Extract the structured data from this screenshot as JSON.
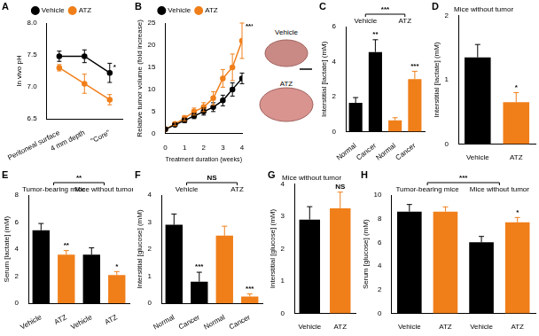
{
  "chart_data": [
    {
      "panel": "A",
      "type": "line",
      "y_label": "In vivo pH",
      "categories": [
        "Peritoneal surface",
        "4 mm depth",
        "\"Core\""
      ],
      "series": [
        {
          "name": "Vehicle",
          "color": "#000000",
          "marker": "circle",
          "values": [
            7.48,
            7.48,
            7.22
          ],
          "errors": [
            0.08,
            0.1,
            0.15
          ]
        },
        {
          "name": "ATZ",
          "color": "#f07f1a",
          "marker": "circle",
          "values": [
            7.3,
            7.05,
            6.8
          ],
          "errors": [
            0.05,
            0.15,
            0.08
          ]
        }
      ],
      "ylim": [
        6.5,
        8.0
      ],
      "yticks": [
        {
          "value": 6.5,
          "label": "6.5"
        },
        {
          "value": 7.0,
          "label": "7.0"
        },
        {
          "value": 7.5,
          "label": "7.5"
        },
        {
          "value": 8.0,
          "label": "8.0"
        }
      ],
      "significance": [
        null,
        null,
        "*"
      ],
      "legend": "top",
      "grid": false
    },
    {
      "panel": "B",
      "type": "line",
      "y_label": "Relative tumor volume (fold increase)",
      "x_label": "Treatment duration (weeks)",
      "x": [
        0,
        0.5,
        1,
        1.5,
        2,
        2.5,
        3,
        3.5,
        4
      ],
      "series": [
        {
          "name": "Vehicle",
          "color": "#000000",
          "marker": "circle",
          "values": [
            1,
            2,
            3,
            4,
            5,
            6,
            7.5,
            10,
            12.5
          ],
          "errors": [
            0,
            0.3,
            0.5,
            0.6,
            0.8,
            1,
            1.2,
            1.5,
            1.2
          ]
        },
        {
          "name": "ATZ",
          "color": "#f07f1a",
          "marker": "circle",
          "values": [
            1,
            2.2,
            3.5,
            5,
            6,
            8,
            12.5,
            15,
            21
          ],
          "errors": [
            0,
            0.4,
            0.6,
            0.8,
            1,
            1.5,
            2,
            3,
            4
          ]
        }
      ],
      "xlim": [
        0,
        4
      ],
      "xticks": [
        0,
        1,
        2,
        3,
        4
      ],
      "ylim": [
        0,
        25
      ],
      "yticks": [
        0,
        5,
        10,
        15,
        20,
        25
      ],
      "significance": [
        null,
        null,
        null,
        null,
        null,
        null,
        null,
        null,
        "***"
      ],
      "photo_labels": [
        "Vehicle",
        "ATZ"
      ],
      "legend": "top",
      "grid": false
    },
    {
      "panel": "C",
      "type": "bar",
      "y_label": "Interstitial [lactate] (mM)",
      "categories": [
        "Normal",
        "Cancer",
        "Normal",
        "Cancer"
      ],
      "values": [
        1.65,
        4.55,
        0.65,
        3.0
      ],
      "errors": [
        0.3,
        0.7,
        0.15,
        0.45
      ],
      "colors": [
        "#000000",
        "#000000",
        "#f07f1a",
        "#f07f1a"
      ],
      "ylim": [
        0,
        6
      ],
      "yticks": [
        0,
        2,
        4,
        6
      ],
      "significance": [
        null,
        "**",
        null,
        "***"
      ],
      "groups": [
        "Vehicle",
        "ATZ"
      ],
      "comparison": "***",
      "grid": false
    },
    {
      "panel": "D",
      "type": "bar",
      "title": "Mice without tumor",
      "y_label": "Interstitial [lactate] (mM)",
      "categories": [
        "Vehicle",
        "ATZ"
      ],
      "values": [
        1.35,
        0.65
      ],
      "errors": [
        0.2,
        0.15
      ],
      "colors": [
        "#000000",
        "#f07f1a"
      ],
      "ylim": [
        0,
        2
      ],
      "yticks": [
        0,
        1,
        2
      ],
      "significance": [
        null,
        "*"
      ],
      "grid": false
    },
    {
      "panel": "E",
      "type": "bar",
      "y_label": "Serum [lactate] (mM)",
      "categories": [
        "Vehicle",
        "ATZ",
        "Vehicle",
        "ATZ"
      ],
      "values": [
        5.4,
        3.6,
        3.6,
        2.1
      ],
      "errors": [
        0.5,
        0.3,
        0.5,
        0.25
      ],
      "colors": [
        "#000000",
        "#f07f1a",
        "#000000",
        "#f07f1a"
      ],
      "ylim": [
        0,
        8
      ],
      "yticks": [
        0,
        2,
        4,
        6,
        8
      ],
      "significance": [
        null,
        "**",
        null,
        "*"
      ],
      "groups": [
        "Tumor-bearing mice",
        "Mice without tumor"
      ],
      "comparison": "**",
      "grid": false
    },
    {
      "panel": "F",
      "type": "bar",
      "y_label": "Interstitial [glucose] (mM)",
      "categories": [
        "Normal",
        "Cancer",
        "Normal",
        "Cancer"
      ],
      "values": [
        2.9,
        0.8,
        2.5,
        0.25
      ],
      "errors": [
        0.4,
        0.35,
        0.35,
        0.1
      ],
      "colors": [
        "#000000",
        "#000000",
        "#f07f1a",
        "#f07f1a"
      ],
      "ylim": [
        0,
        4
      ],
      "yticks": [
        0,
        1,
        2,
        3,
        4
      ],
      "significance": [
        null,
        "***",
        null,
        "***"
      ],
      "groups": [
        "Vehicle",
        "ATZ"
      ],
      "comparison": "NS",
      "grid": false
    },
    {
      "panel": "G",
      "type": "bar",
      "title": "Mice without tumor",
      "y_label": "Interstitial [glucose] (mM)",
      "categories": [
        "Vehicle",
        "ATZ"
      ],
      "values": [
        2.9,
        3.25
      ],
      "errors": [
        0.4,
        0.5
      ],
      "colors": [
        "#000000",
        "#f07f1a"
      ],
      "ylim": [
        0,
        4
      ],
      "yticks": [
        0,
        1,
        2,
        3,
        4
      ],
      "significance": [
        null,
        "NS"
      ],
      "grid": false
    },
    {
      "panel": "H",
      "type": "bar",
      "y_label": "Serum [glucose] (mM)",
      "categories": [
        "Vehicle",
        "ATZ",
        "Vehicle",
        "ATZ"
      ],
      "values": [
        8.6,
        8.6,
        6.0,
        7.7
      ],
      "errors": [
        0.6,
        0.4,
        0.5,
        0.4
      ],
      "colors": [
        "#000000",
        "#f07f1a",
        "#000000",
        "#f07f1a"
      ],
      "ylim": [
        0,
        10
      ],
      "yticks": [
        0,
        2,
        4,
        6,
        8,
        10
      ],
      "significance": [
        null,
        null,
        null,
        "*"
      ],
      "groups": [
        "Tumor-bearing mice",
        "Mice without tumor"
      ],
      "comparison": "***",
      "grid": false
    }
  ]
}
